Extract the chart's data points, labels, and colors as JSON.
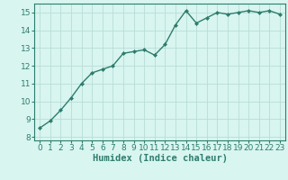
{
  "x": [
    0,
    1,
    2,
    3,
    4,
    5,
    6,
    7,
    8,
    9,
    10,
    11,
    12,
    13,
    14,
    15,
    16,
    17,
    18,
    19,
    20,
    21,
    22,
    23
  ],
  "y": [
    8.5,
    8.9,
    9.5,
    10.2,
    11.0,
    11.6,
    11.8,
    12.0,
    12.7,
    12.8,
    12.9,
    12.6,
    13.2,
    14.3,
    15.1,
    14.4,
    14.7,
    15.0,
    14.9,
    15.0,
    15.1,
    15.0,
    15.1,
    14.9
  ],
  "line_color": "#2e7d6e",
  "marker": "D",
  "marker_size": 2.0,
  "bg_color": "#d8f5f0",
  "grid_color": "#b8ddd8",
  "xlabel": "Humidex (Indice chaleur)",
  "xlim": [
    -0.5,
    23.5
  ],
  "ylim": [
    7.8,
    15.5
  ],
  "yticks": [
    8,
    9,
    10,
    11,
    12,
    13,
    14,
    15
  ],
  "xticks": [
    0,
    1,
    2,
    3,
    4,
    5,
    6,
    7,
    8,
    9,
    10,
    11,
    12,
    13,
    14,
    15,
    16,
    17,
    18,
    19,
    20,
    21,
    22,
    23
  ],
  "tick_fontsize": 6.5,
  "xlabel_fontsize": 7.5,
  "line_width": 1.0
}
